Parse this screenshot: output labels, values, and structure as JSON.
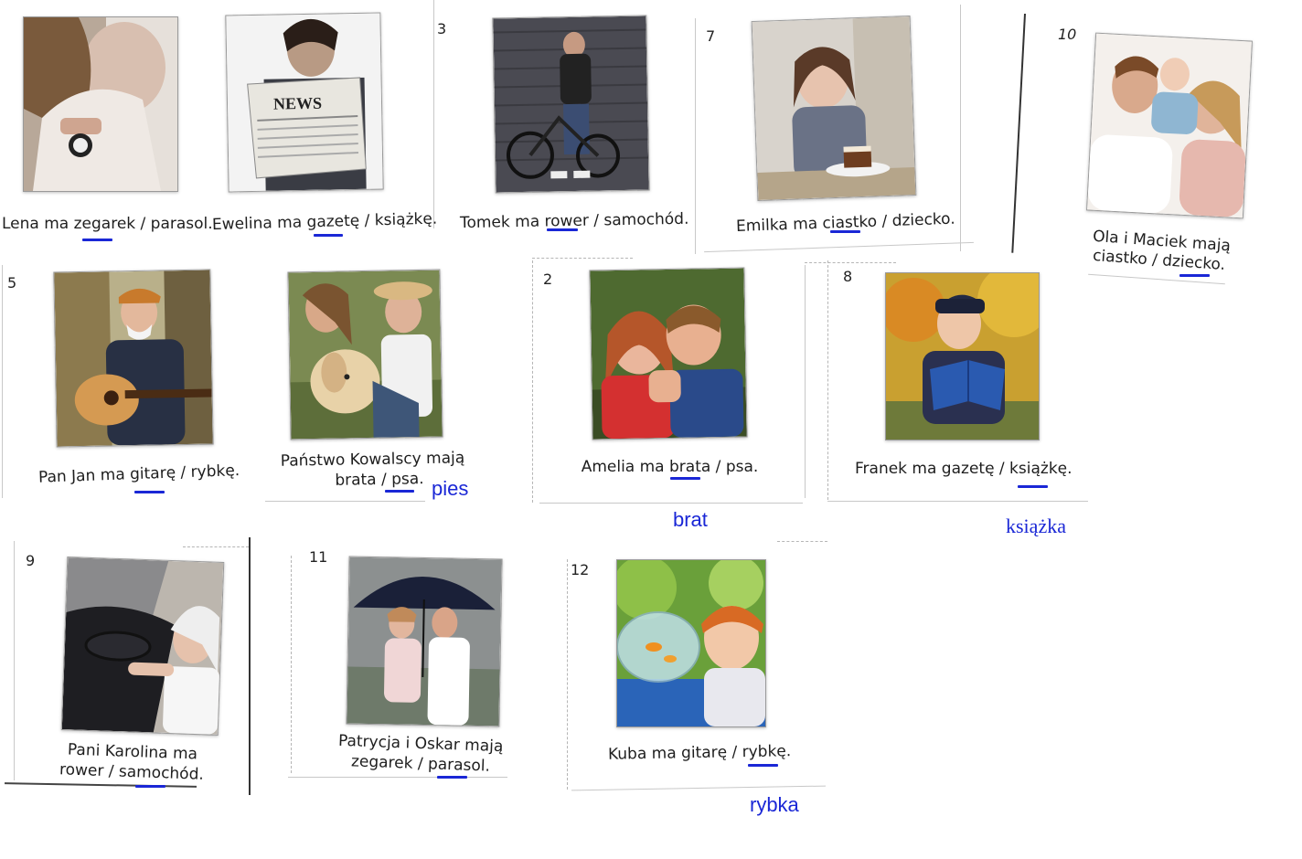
{
  "cards": [
    {
      "id": "lena",
      "number": "",
      "caption": "Lena ma zegarek / parasol."
    },
    {
      "id": "ewelina",
      "number": "",
      "caption": "Ewelina ma gazetę / książkę."
    },
    {
      "id": "tomek",
      "number": "3",
      "caption": "Tomek ma rower / samochód."
    },
    {
      "id": "emilka",
      "number": "7",
      "caption": "Emilka ma ciastko / dziecko."
    },
    {
      "id": "ola",
      "number": "10",
      "caption_line1": "Ola i Maciek mają",
      "caption_line2": "ciastko / dziecko."
    },
    {
      "id": "jan",
      "number": "5",
      "caption": "Pan Jan ma gitarę / rybkę."
    },
    {
      "id": "kowalscy",
      "number": "",
      "caption_line1": "Państwo Kowalscy mają",
      "caption_line2": "brata / psa."
    },
    {
      "id": "amelia",
      "number": "2",
      "caption": "Amelia ma brata / psa."
    },
    {
      "id": "franek",
      "number": "8",
      "caption": "Franek ma gazetę / książkę."
    },
    {
      "id": "karolina",
      "number": "9",
      "caption_line1": "Pani Karolina ma",
      "caption_line2": "rower / samochód."
    },
    {
      "id": "patrycja",
      "number": "11",
      "caption_line1": "Patrycja i Oskar mają",
      "caption_line2": "zegarek / parasol."
    },
    {
      "id": "kuba",
      "number": "12",
      "caption": "Kuba ma gitarę / rybkę."
    }
  ],
  "answers": {
    "pies": "pies",
    "brat": "brat",
    "ksiazka": "książka",
    "rybka": "rybka"
  },
  "photo_labels": {
    "newspaper": "NEWS"
  },
  "colors": {
    "ink_blue": "#1a27d6",
    "caption_text": "#1e1e1e"
  }
}
